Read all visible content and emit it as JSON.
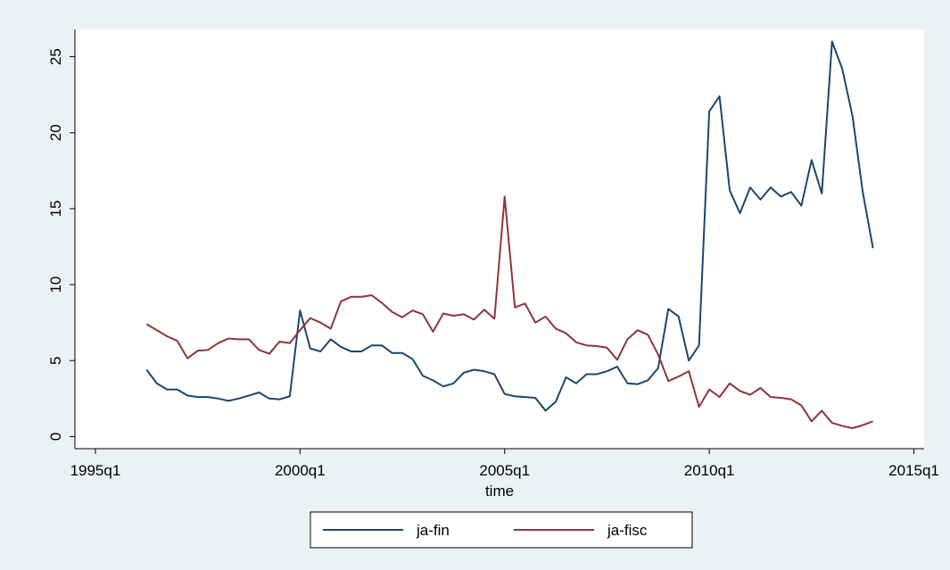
{
  "chart_data": {
    "type": "line",
    "x_label": "time",
    "x": [
      "1996q2",
      "1996q3",
      "1996q4",
      "1997q1",
      "1997q2",
      "1997q3",
      "1997q4",
      "1998q1",
      "1998q2",
      "1998q3",
      "1998q4",
      "1999q1",
      "1999q2",
      "1999q3",
      "1999q4",
      "2000q1",
      "2000q2",
      "2000q3",
      "2000q4",
      "2001q1",
      "2001q2",
      "2001q3",
      "2001q4",
      "2002q1",
      "2002q2",
      "2002q3",
      "2002q4",
      "2003q1",
      "2003q2",
      "2003q3",
      "2003q4",
      "2004q1",
      "2004q2",
      "2004q3",
      "2004q4",
      "2005q1",
      "2005q2",
      "2005q3",
      "2005q4",
      "2006q1",
      "2006q2",
      "2006q3",
      "2006q4",
      "2007q1",
      "2007q2",
      "2007q3",
      "2007q4",
      "2008q1",
      "2008q2",
      "2008q3",
      "2008q4",
      "2009q1",
      "2009q2",
      "2009q3",
      "2009q4",
      "2010q1",
      "2010q2",
      "2010q3",
      "2010q4",
      "2011q1",
      "2011q2",
      "2011q3",
      "2011q4",
      "2012q1",
      "2012q2",
      "2012q3",
      "2012q4",
      "2013q1",
      "2013q2",
      "2013q3",
      "2013q4",
      "2014q1"
    ],
    "series": [
      {
        "name": "ja-fin",
        "color": "#1a476f",
        "values": [
          4.4,
          3.5,
          3.1,
          3.1,
          2.7,
          2.6,
          2.6,
          2.5,
          2.35,
          2.5,
          2.7,
          2.9,
          2.5,
          2.45,
          2.65,
          8.3,
          5.8,
          5.6,
          6.4,
          5.9,
          5.6,
          5.6,
          6.0,
          6.0,
          5.5,
          5.5,
          5.1,
          4.0,
          3.7,
          3.3,
          3.5,
          4.2,
          4.4,
          4.3,
          4.1,
          2.8,
          2.65,
          2.6,
          2.55,
          1.7,
          2.3,
          3.9,
          3.5,
          4.1,
          4.1,
          4.3,
          4.6,
          3.5,
          3.45,
          3.7,
          4.5,
          8.4,
          7.9,
          5.0,
          6.0,
          21.4,
          22.4,
          16.2,
          14.7,
          16.4,
          15.6,
          16.4,
          15.8,
          16.1,
          15.2,
          18.2,
          16.0,
          26.0,
          24.2,
          21.1,
          16.1,
          12.4
        ]
      },
      {
        "name": "ja-fisc",
        "color": "#90353b",
        "values": [
          7.4,
          7.0,
          6.6,
          6.3,
          5.15,
          5.65,
          5.7,
          6.15,
          6.45,
          6.4,
          6.4,
          5.7,
          5.45,
          6.25,
          6.15,
          7.0,
          7.8,
          7.5,
          7.1,
          8.9,
          9.2,
          9.2,
          9.3,
          8.8,
          8.2,
          7.85,
          8.3,
          8.05,
          6.9,
          8.1,
          7.95,
          8.05,
          7.7,
          8.35,
          7.75,
          15.8,
          8.5,
          8.75,
          7.5,
          7.9,
          7.1,
          6.8,
          6.2,
          6.0,
          5.95,
          5.85,
          5.05,
          6.4,
          7.0,
          6.7,
          5.4,
          3.65,
          3.95,
          4.3,
          1.95,
          3.1,
          2.6,
          3.5,
          3.0,
          2.75,
          3.2,
          2.6,
          2.55,
          2.45,
          2.05,
          1.0,
          1.7,
          0.9,
          0.7,
          0.55,
          0.75,
          1.0
        ]
      }
    ],
    "xlim": [
      "1994q3",
      "2015q2"
    ],
    "xticks": [
      "1995q1",
      "2000q1",
      "2005q1",
      "2010q1",
      "2015q1"
    ],
    "ylim": [
      -0.8,
      26.8
    ],
    "yticks": [
      0,
      5,
      10,
      15,
      20,
      25
    ]
  }
}
